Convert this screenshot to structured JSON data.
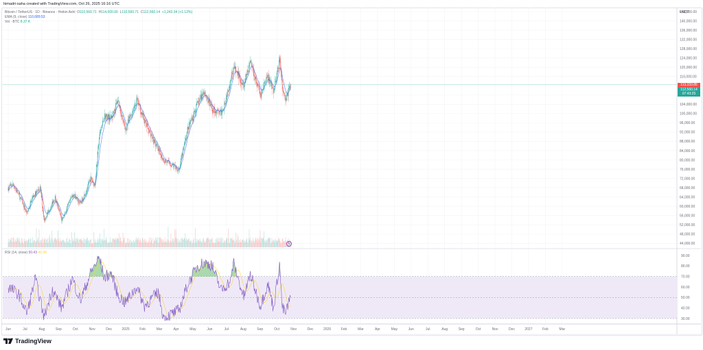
{
  "caption": "himadri-saha created with TradingView.com, Oct 26, 2025 16:16 UTC",
  "legend": {
    "symbol": "Bitcoin / TetherUS · 1D · Binance · Heikin Ashi",
    "o_label": "O",
    "o_value": "110,560.71",
    "h_label": "H",
    "h_value": "114,000.00",
    "l_label": "L",
    "l_value": "110,560.71",
    "c_label": "C",
    "c_value": "112,560.14",
    "change": "+1,243.34 (+1.12%)",
    "ema_label": "EMA (9, close)",
    "ema_value": "110,689.53",
    "vol_label": "Vol · BTC",
    "vol_value": "8.37 K"
  },
  "rsi_legend": {
    "label": "RSI (14, close)",
    "rsi_value": "50.43",
    "ma_value": "46.98"
  },
  "price_axis": {
    "currency": "USDT",
    "ticks": [
      "144,000.00",
      "140,000.00",
      "136,000.00",
      "132,000.00",
      "128,000.00",
      "124,000.00",
      "120,000.00",
      "116,000.00",
      "112,000.00",
      "108,000.00",
      "104,000.00",
      "100,000.00",
      "96,000.00",
      "92,000.00",
      "88,000.00",
      "84,000.00",
      "80,000.00",
      "76,000.00",
      "72,000.00",
      "68,000.00",
      "64,000.00",
      "60,000.00",
      "56,000.00",
      "52,000.00",
      "48,000.00",
      "44,000.00"
    ],
    "tag_high": "113,333.85",
    "tag_last": "112,560.14",
    "tag_countdown": "07:43:25"
  },
  "rsi_axis": {
    "ticks": [
      "90.00",
      "80.00",
      "70.00",
      "60.00",
      "50.00",
      "40.00",
      "30.00"
    ]
  },
  "time_axis": {
    "labels": [
      "Jun",
      "Jul",
      "Aug",
      "Sep",
      "Oct",
      "Nov",
      "Dec",
      "2025",
      "Feb",
      "Mar",
      "Apr",
      "May",
      "Jun",
      "Jul",
      "Aug",
      "Sep",
      "Oct",
      "Nov",
      "Dec",
      "2026",
      "Feb",
      "Mar",
      "Apr",
      "May",
      "Jun",
      "Jul",
      "Aug",
      "Sep",
      "Oct",
      "Nov",
      "Dec",
      "2027",
      "Feb",
      "Mar"
    ]
  },
  "footer": {
    "brand": "TradingView"
  },
  "colors": {
    "up": "#26a69a",
    "down": "#ef5350",
    "ema": "#2962ff",
    "rsi": "#7e57c2",
    "rsi_ma": "#fdd835",
    "rsi_band": "#ede7f6"
  },
  "chart_data": {
    "type": "candlestick",
    "title": "Bitcoin / TetherUS · 1D · Binance · Heikin Ashi",
    "xlabel": "",
    "ylabel": "USDT",
    "ylim": [
      44000,
      144000
    ],
    "x_range": [
      "2024-06",
      "2027-03"
    ],
    "price_path": {
      "x": [
        "2024-06-01",
        "2024-06-10",
        "2024-06-24",
        "2024-07-05",
        "2024-07-15",
        "2024-07-29",
        "2024-08-05",
        "2024-08-25",
        "2024-09-06",
        "2024-09-27",
        "2024-10-10",
        "2024-10-29",
        "2024-11-05",
        "2024-11-13",
        "2024-11-22",
        "2024-12-05",
        "2024-12-17",
        "2024-12-30",
        "2025-01-20",
        "2025-02-03",
        "2025-02-28",
        "2025-03-10",
        "2025-04-07",
        "2025-04-22",
        "2025-05-10",
        "2025-05-22",
        "2025-06-05",
        "2025-06-22",
        "2025-07-01",
        "2025-07-14",
        "2025-08-02",
        "2025-08-14",
        "2025-09-01",
        "2025-09-15",
        "2025-09-25",
        "2025-10-06",
        "2025-10-11",
        "2025-10-17",
        "2025-10-26"
      ],
      "close": [
        68000,
        69500,
        63000,
        57000,
        64000,
        68000,
        54000,
        64000,
        54000,
        65500,
        61000,
        72000,
        69000,
        90000,
        99000,
        98000,
        106000,
        93000,
        106000,
        97000,
        84000,
        80000,
        76000,
        93000,
        104000,
        110000,
        102000,
        100000,
        107000,
        120000,
        113000,
        123000,
        108000,
        116000,
        109000,
        124000,
        112000,
        106000,
        112560
      ]
    },
    "ema_period": 9,
    "volume_range": [
      0,
      60000
    ],
    "rsi": {
      "period": 14,
      "last": 50.43,
      "ma_last": 46.98,
      "ylim": [
        30,
        90
      ],
      "bands": [
        30,
        50,
        70
      ],
      "x": [
        "2024-06-01",
        "2024-06-20",
        "2024-07-05",
        "2024-07-20",
        "2024-08-05",
        "2024-08-20",
        "2024-09-06",
        "2024-09-25",
        "2024-10-10",
        "2024-10-29",
        "2024-11-13",
        "2024-11-22",
        "2024-12-05",
        "2024-12-17",
        "2024-12-30",
        "2025-01-20",
        "2025-02-03",
        "2025-02-28",
        "2025-03-10",
        "2025-04-07",
        "2025-04-22",
        "2025-05-10",
        "2025-05-22",
        "2025-06-05",
        "2025-06-22",
        "2025-07-10",
        "2025-07-14",
        "2025-08-02",
        "2025-08-14",
        "2025-09-01",
        "2025-09-15",
        "2025-09-25",
        "2025-10-06",
        "2025-10-11",
        "2025-10-17",
        "2025-10-26"
      ],
      "values": [
        60,
        53,
        35,
        68,
        31,
        58,
        40,
        68,
        47,
        74,
        88,
        69,
        73,
        52,
        45,
        60,
        42,
        55,
        30,
        38,
        62,
        80,
        83,
        81,
        57,
        66,
        84,
        50,
        72,
        42,
        63,
        40,
        82,
        40,
        35,
        50.43
      ]
    }
  }
}
